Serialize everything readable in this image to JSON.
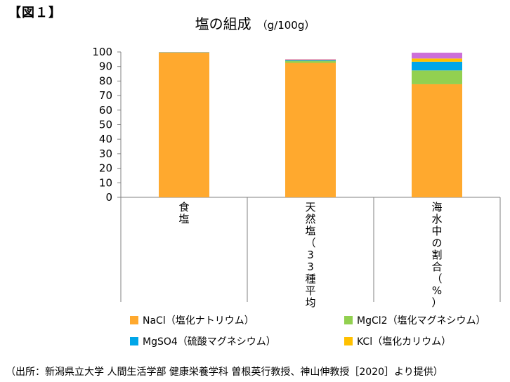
{
  "figure_label": "【図１】",
  "source_note": "（出所：新潟県立大学 人間生活学部 健康栄養学科 曽根英行教授、神山伸教授［2020］より提供）",
  "chart_data": {
    "type": "bar",
    "stacked": true,
    "title": "塩の組成",
    "title_unit": "（g/100g）",
    "categories": [
      "食塩",
      "天然塩（33種平均）",
      "海水中の割合（%）"
    ],
    "ylim": [
      0,
      100
    ],
    "yticks": [
      0,
      10,
      20,
      30,
      40,
      50,
      60,
      70,
      80,
      90,
      100
    ],
    "grid": false,
    "legend_position": "bottom",
    "series": [
      {
        "name": "NaCl（塩化ナトリウム）",
        "color": "#FFA92E",
        "values": [
          99.5,
          92.5,
          77.8
        ]
      },
      {
        "name": "MgCl2（塩化マグネシウム）",
        "color": "#92D050",
        "values": [
          0.2,
          1.2,
          9.5
        ]
      },
      {
        "name": "MgSO4（硫酸マグネシウム）",
        "color": "#00A6E8",
        "values": [
          0.1,
          0.5,
          6.0
        ]
      },
      {
        "name": "KCl（塩化カリウム）",
        "color": "#FFC000",
        "values": [
          0.1,
          0.4,
          2.2
        ]
      },
      {
        "name": "",
        "color": "#CC6FD9",
        "values": [
          0.1,
          0.4,
          4.0
        ]
      }
    ]
  }
}
